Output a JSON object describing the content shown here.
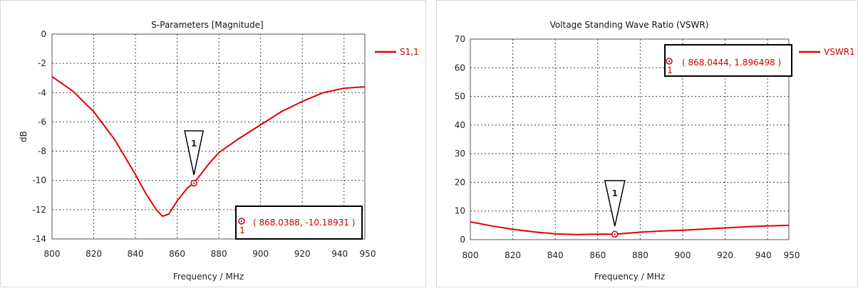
{
  "chart_data": [
    {
      "type": "line",
      "title": "S-Parameters [Magnitude]",
      "xlabel": "Frequency / MHz",
      "ylabel": "dB",
      "xlim": [
        800,
        950
      ],
      "ylim": [
        -14,
        0
      ],
      "xticks": [
        "800",
        "820",
        "840",
        "860",
        "880",
        "900",
        "920",
        "940",
        "950"
      ],
      "yticks": [
        "0",
        "-2",
        "-4",
        "-6",
        "-8",
        "-10",
        "-12",
        "-14"
      ],
      "grid": true,
      "legend_position": "right",
      "series": [
        {
          "name": "S1,1",
          "color": "#e00000",
          "x": [
            800,
            810,
            820,
            830,
            840,
            845,
            850,
            853,
            856,
            860,
            865,
            868.0388,
            875,
            880,
            890,
            900,
            910,
            920,
            930,
            940,
            950
          ],
          "y": [
            -2.9,
            -3.9,
            -5.3,
            -7.2,
            -9.6,
            -10.9,
            -12.0,
            -12.45,
            -12.3,
            -11.4,
            -10.5,
            -10.18931,
            -8.9,
            -8.1,
            -7.1,
            -6.2,
            -5.3,
            -4.6,
            -4.0,
            -3.7,
            -3.6
          ]
        }
      ],
      "markers": [
        {
          "id": "1",
          "x": 868.0388,
          "y": -10.18931,
          "label": "( 868.0388, -10.18931 )"
        }
      ]
    },
    {
      "type": "line",
      "title": "Voltage Standing Wave Ratio (VSWR)",
      "xlabel": "Frequency / MHz",
      "ylabel": "",
      "xlim": [
        800,
        950
      ],
      "ylim": [
        0,
        70
      ],
      "xticks": [
        "800",
        "820",
        "840",
        "860",
        "880",
        "900",
        "920",
        "940",
        "950"
      ],
      "yticks": [
        "70",
        "60",
        "50",
        "40",
        "30",
        "20",
        "10",
        "0"
      ],
      "grid": true,
      "legend_position": "right",
      "series": [
        {
          "name": "VSWR1",
          "color": "#e00000",
          "x": [
            800,
            810,
            820,
            830,
            840,
            850,
            860,
            868.0444,
            880,
            890,
            900,
            910,
            920,
            930,
            940,
            950
          ],
          "y": [
            6.2,
            4.8,
            3.6,
            2.7,
            2.0,
            1.75,
            1.9,
            1.896498,
            2.6,
            3.0,
            3.3,
            3.7,
            4.1,
            4.5,
            4.8,
            5.0
          ]
        }
      ],
      "markers": [
        {
          "id": "1",
          "x": 868.0444,
          "y": 1.896498,
          "label": "( 868.0444, 1.896498 )"
        }
      ]
    }
  ]
}
